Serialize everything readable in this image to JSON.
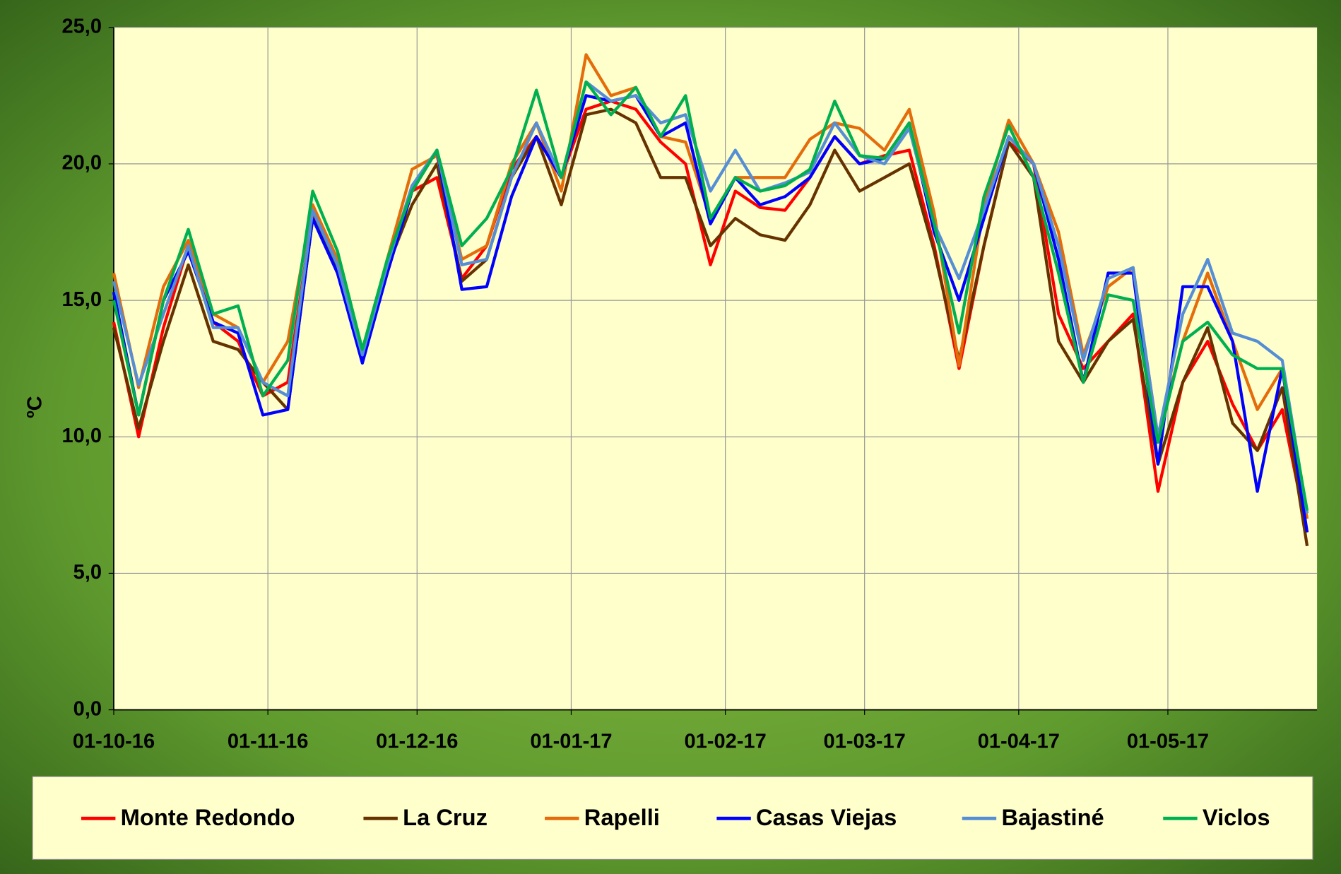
{
  "chart_data": {
    "type": "line",
    "y_label": "ºC",
    "x": [
      "01-10-16",
      "06-10-16",
      "11-10-16",
      "16-10-16",
      "21-10-16",
      "26-10-16",
      "31-10-16",
      "05-11-16",
      "10-11-16",
      "15-11-16",
      "20-11-16",
      "25-11-16",
      "30-11-16",
      "05-12-16",
      "10-12-16",
      "15-12-16",
      "20-12-16",
      "25-12-16",
      "30-12-16",
      "04-01-17",
      "09-01-17",
      "14-01-17",
      "19-01-17",
      "24-01-17",
      "29-01-17",
      "03-02-17",
      "08-02-17",
      "13-02-17",
      "18-02-17",
      "23-02-17",
      "28-02-17",
      "05-03-17",
      "10-03-17",
      "15-03-17",
      "20-03-17",
      "25-03-17",
      "30-03-17",
      "04-04-17",
      "09-04-17",
      "14-04-17",
      "19-04-17",
      "24-04-17",
      "29-04-17",
      "04-05-17",
      "09-05-17",
      "14-05-17",
      "19-05-17",
      "24-05-17",
      "29-05-17"
    ],
    "series": [
      {
        "name": "Monte Redondo",
        "color": "#ff0000",
        "values": [
          14.2,
          10.0,
          14.0,
          17.0,
          14.2,
          13.5,
          11.5,
          12.0,
          18.2,
          16.0,
          12.8,
          16.0,
          19.0,
          19.5,
          15.8,
          17.0,
          19.8,
          21.0,
          19.5,
          22.0,
          22.3,
          22.0,
          20.8,
          20.0,
          16.3,
          19.0,
          18.4,
          18.3,
          19.5,
          21.0,
          20.0,
          20.3,
          20.5,
          17.0,
          12.5,
          17.0,
          20.8,
          20.0,
          14.5,
          12.5,
          13.5,
          14.5,
          8.0,
          12.0,
          13.5,
          11.2,
          9.5,
          11.0,
          6.5
        ]
      },
      {
        "name": "La Cruz",
        "color": "#663300",
        "values": [
          14.0,
          10.3,
          13.5,
          16.3,
          13.5,
          13.2,
          12.0,
          11.0,
          18.0,
          16.2,
          13.0,
          16.2,
          18.5,
          20.0,
          15.7,
          16.5,
          19.5,
          21.0,
          18.5,
          21.8,
          22.0,
          21.5,
          19.5,
          19.5,
          17.0,
          18.0,
          17.4,
          17.2,
          18.5,
          20.5,
          19.0,
          19.5,
          20.0,
          16.8,
          12.8,
          17.0,
          20.8,
          19.5,
          13.5,
          12.0,
          13.5,
          14.3,
          9.0,
          12.0,
          14.0,
          10.5,
          9.5,
          11.8,
          6.0
        ]
      },
      {
        "name": "Rapelli",
        "color": "#e46c0a",
        "values": [
          16.0,
          11.8,
          15.5,
          17.2,
          14.5,
          14.0,
          12.0,
          13.5,
          18.5,
          16.5,
          13.0,
          16.5,
          19.8,
          20.3,
          16.5,
          17.0,
          20.0,
          21.5,
          19.0,
          24.0,
          22.5,
          22.8,
          21.0,
          20.8,
          18.0,
          19.5,
          19.5,
          19.5,
          20.9,
          21.5,
          21.3,
          20.5,
          22.0,
          18.2,
          12.6,
          18.5,
          21.6,
          20.0,
          17.5,
          13.0,
          15.5,
          16.2,
          10.0,
          13.5,
          16.0,
          13.5,
          11.0,
          12.5,
          7.0
        ]
      },
      {
        "name": "Casas Viejas",
        "color": "#0000ff",
        "values": [
          15.3,
          10.8,
          15.0,
          16.8,
          14.2,
          13.8,
          10.8,
          11.0,
          18.0,
          16.0,
          12.7,
          16.0,
          19.0,
          20.5,
          15.4,
          15.5,
          18.8,
          21.0,
          19.5,
          22.5,
          22.3,
          22.5,
          21.0,
          21.5,
          17.8,
          19.5,
          18.5,
          18.8,
          19.5,
          21.0,
          20.0,
          20.2,
          21.5,
          17.5,
          15.0,
          18.0,
          21.0,
          20.0,
          16.5,
          12.0,
          16.0,
          16.0,
          9.0,
          15.5,
          15.5,
          13.5,
          8.0,
          12.5,
          6.5
        ]
      },
      {
        "name": "Bajastiné",
        "color": "#558ed5",
        "values": [
          15.7,
          11.9,
          14.5,
          17.0,
          14.0,
          14.0,
          12.0,
          11.5,
          18.3,
          16.3,
          13.0,
          16.3,
          19.2,
          20.5,
          16.3,
          16.5,
          19.5,
          21.5,
          19.5,
          23.0,
          22.3,
          22.5,
          21.5,
          21.8,
          19.0,
          20.5,
          19.0,
          19.3,
          19.7,
          21.5,
          20.3,
          20.0,
          21.3,
          17.8,
          15.8,
          18.3,
          21.0,
          20.0,
          17.0,
          12.8,
          15.8,
          16.2,
          10.0,
          14.5,
          16.5,
          13.8,
          13.5,
          12.8,
          7.2
        ]
      },
      {
        "name": "Viclos",
        "color": "#00b050",
        "values": [
          15.0,
          10.8,
          15.0,
          17.6,
          14.5,
          14.8,
          11.5,
          12.8,
          19.0,
          16.8,
          13.2,
          16.5,
          19.0,
          20.5,
          17.0,
          18.0,
          19.8,
          22.7,
          19.5,
          23.0,
          21.8,
          22.8,
          21.0,
          22.5,
          18.0,
          19.5,
          19.0,
          19.2,
          19.8,
          22.3,
          20.3,
          20.2,
          21.5,
          17.8,
          13.8,
          18.8,
          21.4,
          19.5,
          16.0,
          12.0,
          15.2,
          15.0,
          9.8,
          13.5,
          14.2,
          13.0,
          12.5,
          12.5,
          7.3
        ]
      }
    ],
    "xlim": [
      "01-10-16",
      "31-05-17"
    ],
    "xticks": [
      "01-10-16",
      "01-11-16",
      "01-12-16",
      "01-01-17",
      "01-02-17",
      "01-03-17",
      "01-04-17",
      "01-05-17"
    ],
    "ylim": [
      0,
      25
    ],
    "yticks": [
      {
        "value": 0,
        "label": "0,0"
      },
      {
        "value": 5,
        "label": "5,0"
      },
      {
        "value": 10,
        "label": "10,0"
      },
      {
        "value": 15,
        "label": "15,0"
      },
      {
        "value": 20,
        "label": "20,0"
      },
      {
        "value": 25,
        "label": "25,0"
      }
    ],
    "grid": true,
    "legend": "bottom"
  }
}
